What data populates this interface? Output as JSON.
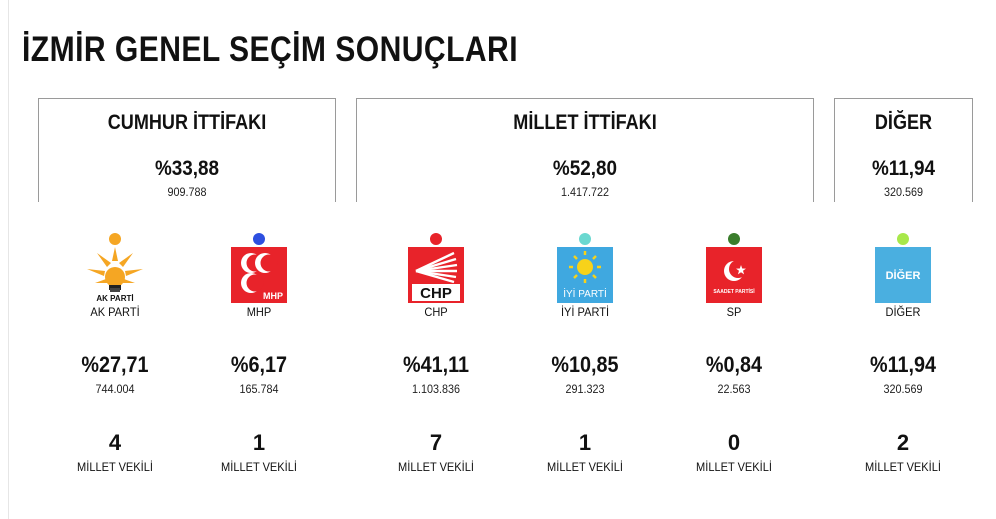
{
  "title": "İZMİR GENEL SEÇİM SONUÇLARI",
  "groups": [
    {
      "name": "CUMHUR İTTİFAKI",
      "percent": "%33,88",
      "votes": "909.788"
    },
    {
      "name": "MİLLET İTTİFAKI",
      "percent": "%52,80",
      "votes": "1.417.722"
    },
    {
      "name": "DİĞER",
      "percent": "%11,94",
      "votes": "320.569"
    }
  ],
  "parties": [
    {
      "name": "AK PARTİ",
      "logo_text": "AK PARTİ",
      "dot_color": "#f5a623",
      "percent": "%27,71",
      "votes": "744.004",
      "seats": "4",
      "seats_label": "MİLLET VEKİLİ"
    },
    {
      "name": "MHP",
      "logo_text": "MHP",
      "dot_color": "#2d4fe0",
      "percent": "%6,17",
      "votes": "165.784",
      "seats": "1",
      "seats_label": "MİLLET VEKİLİ"
    },
    {
      "name": "CHP",
      "logo_text": "CHP",
      "dot_color": "#e8232a",
      "percent": "%41,11",
      "votes": "1.103.836",
      "seats": "7",
      "seats_label": "MİLLET VEKİLİ"
    },
    {
      "name": "İYİ PARTİ",
      "logo_text": "İYİ PARTİ",
      "dot_color": "#6ad8d0",
      "percent": "%10,85",
      "votes": "291.323",
      "seats": "1",
      "seats_label": "MİLLET VEKİLİ"
    },
    {
      "name": "SP",
      "logo_text": "SAADET PARTİSİ",
      "dot_color": "#3a7d2c",
      "percent": "%0,84",
      "votes": "22.563",
      "seats": "0",
      "seats_label": "MİLLET VEKİLİ"
    },
    {
      "name": "DİĞER",
      "logo_text": "DİĞER",
      "dot_color": "#a8e84a",
      "percent": "%11,94",
      "votes": "320.569",
      "seats": "2",
      "seats_label": "MİLLET VEKİLİ"
    }
  ]
}
